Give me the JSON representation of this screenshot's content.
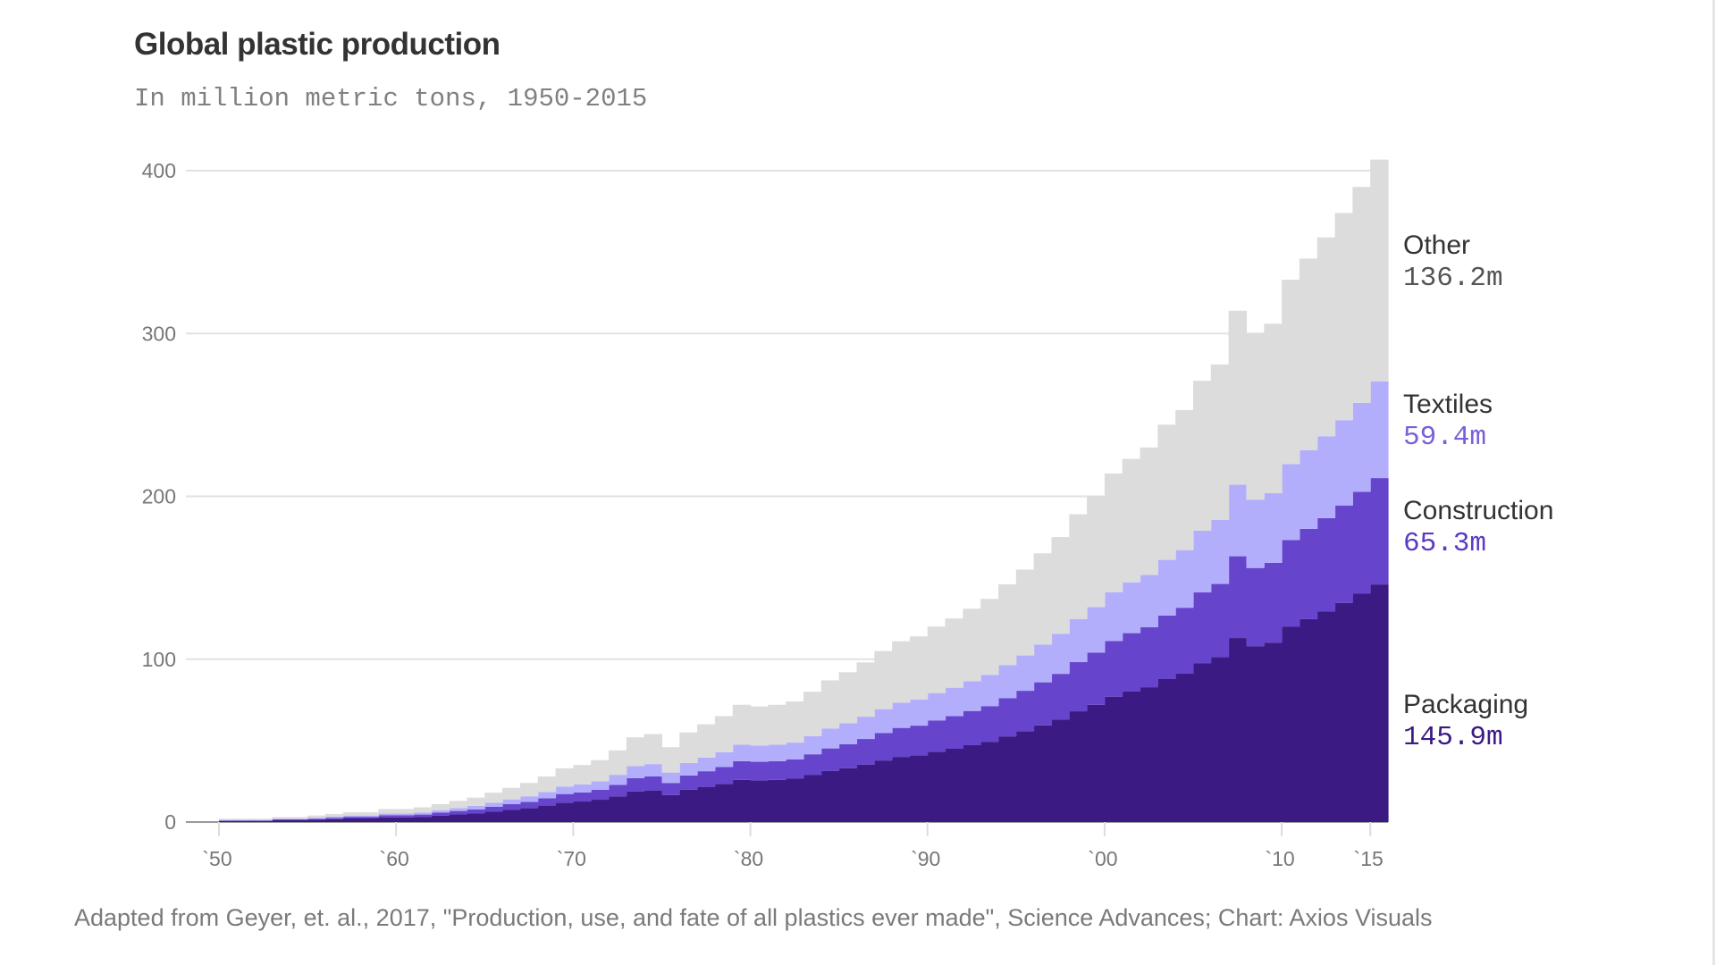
{
  "chart_data": {
    "type": "bar",
    "stacked": true,
    "title": "Global plastic production",
    "subtitle": "In million metric tons, 1950-2015",
    "source": "Adapted from Geyer, et. al., 2017, \"Production, use, and fate of all plastics ever made\", Science Advances; Chart: Axios Visuals",
    "xlabel": "",
    "ylabel": "",
    "ylim": [
      0,
      400
    ],
    "grid": true,
    "yticks": [
      "0",
      "100",
      "200",
      "300",
      "400"
    ],
    "ytick_values": [
      0,
      100,
      200,
      300,
      400
    ],
    "xticks": [
      {
        "label": "`50",
        "year": 1950
      },
      {
        "label": "`60",
        "year": 1960
      },
      {
        "label": "`70",
        "year": 1970
      },
      {
        "label": "`80",
        "year": 1980
      },
      {
        "label": "`90",
        "year": 1990
      },
      {
        "label": "`00",
        "year": 2000
      },
      {
        "label": "`10",
        "year": 2010
      },
      {
        "label": "`15",
        "year": 2015
      }
    ],
    "x_start": 1950,
    "x_end": 2015,
    "series": [
      {
        "name": "Packaging",
        "label": "145.9m",
        "color": "#3c1a84",
        "value_color": "#3c1a84",
        "values": [
          0.7,
          0.7,
          0.7,
          1.1,
          1.1,
          1.4,
          1.8,
          2.2,
          2.2,
          2.9,
          2.9,
          3.2,
          4.0,
          4.7,
          5.4,
          6.5,
          7.6,
          8.6,
          10.1,
          11.9,
          12.6,
          13.7,
          15.8,
          18.7,
          19.4,
          16.6,
          19.8,
          21.6,
          23.4,
          25.9,
          25.6,
          25.9,
          26.6,
          28.8,
          31.3,
          33.1,
          35.3,
          37.8,
          40.0,
          41.0,
          43.2,
          45.0,
          47.2,
          49.3,
          52.6,
          55.8,
          59.4,
          63.0,
          68.0,
          72.0,
          77.0,
          80.3,
          82.8,
          87.8,
          91.1,
          97.6,
          101.2,
          113.0,
          108.0,
          110.2,
          119.9,
          124.6,
          129.2,
          134.6,
          140.4,
          145.9
        ]
      },
      {
        "name": "Construction",
        "label": "65.3m",
        "color": "#6644cc",
        "value_color": "#5b3bc4",
        "values": [
          0.3,
          0.3,
          0.3,
          0.5,
          0.5,
          0.6,
          0.8,
          1.0,
          1.0,
          1.3,
          1.3,
          1.4,
          1.8,
          2.1,
          2.4,
          2.9,
          3.4,
          3.8,
          4.5,
          5.3,
          5.6,
          6.1,
          7.0,
          8.3,
          8.6,
          7.4,
          8.8,
          9.6,
          10.4,
          11.5,
          11.4,
          11.5,
          11.8,
          12.8,
          13.9,
          14.7,
          15.7,
          16.8,
          17.8,
          18.2,
          19.2,
          20.0,
          21.0,
          21.9,
          23.4,
          24.8,
          26.4,
          28.0,
          30.2,
          32.0,
          34.2,
          35.7,
          36.8,
          39.0,
          40.5,
          43.4,
          45.0,
          50.2,
          48.0,
          49.0,
          53.3,
          55.4,
          57.4,
          59.8,
          62.4,
          65.3
        ]
      },
      {
        "name": "Textiles",
        "label": "59.4m",
        "color": "#b3aefc",
        "value_color": "#7b5fd9",
        "values": [
          0.3,
          0.3,
          0.3,
          0.4,
          0.4,
          0.6,
          0.7,
          0.8,
          0.8,
          1.1,
          1.1,
          1.3,
          1.5,
          1.8,
          2.1,
          2.5,
          2.9,
          3.4,
          3.9,
          4.6,
          4.9,
          5.3,
          6.2,
          7.3,
          7.6,
          6.4,
          7.7,
          8.4,
          9.1,
          10.1,
          9.9,
          10.1,
          10.4,
          11.2,
          12.2,
          12.9,
          13.7,
          14.7,
          15.5,
          16.0,
          16.8,
          17.5,
          18.3,
          19.2,
          20.4,
          21.7,
          23.1,
          24.5,
          26.5,
          28.0,
          30.0,
          31.2,
          32.2,
          34.2,
          35.4,
          37.9,
          39.3,
          44.0,
          42.0,
          42.8,
          46.6,
          48.4,
          50.3,
          52.4,
          54.6,
          59.4
        ]
      },
      {
        "name": "Other",
        "label": "136.2m",
        "color": "#dcdcdc",
        "value_color": "#555555",
        "values": [
          0.7,
          0.7,
          0.7,
          1.0,
          1.0,
          1.4,
          1.7,
          2.0,
          2.0,
          2.7,
          2.7,
          3.1,
          3.7,
          4.4,
          5.1,
          6.1,
          7.1,
          8.2,
          9.5,
          11.2,
          11.9,
          12.9,
          15.0,
          17.7,
          18.4,
          15.6,
          18.7,
          20.4,
          22.1,
          24.5,
          24.1,
          24.5,
          25.2,
          27.2,
          29.6,
          31.3,
          33.3,
          35.7,
          37.7,
          38.8,
          40.8,
          42.5,
          44.5,
          46.6,
          49.6,
          52.7,
          56.1,
          59.5,
          64.3,
          68.0,
          72.8,
          75.8,
          78.2,
          83.0,
          86.0,
          92.1,
          95.5,
          106.8,
          102.0,
          104.0,
          113.2,
          117.6,
          122.1,
          127.2,
          132.6,
          136.2
        ]
      }
    ]
  }
}
